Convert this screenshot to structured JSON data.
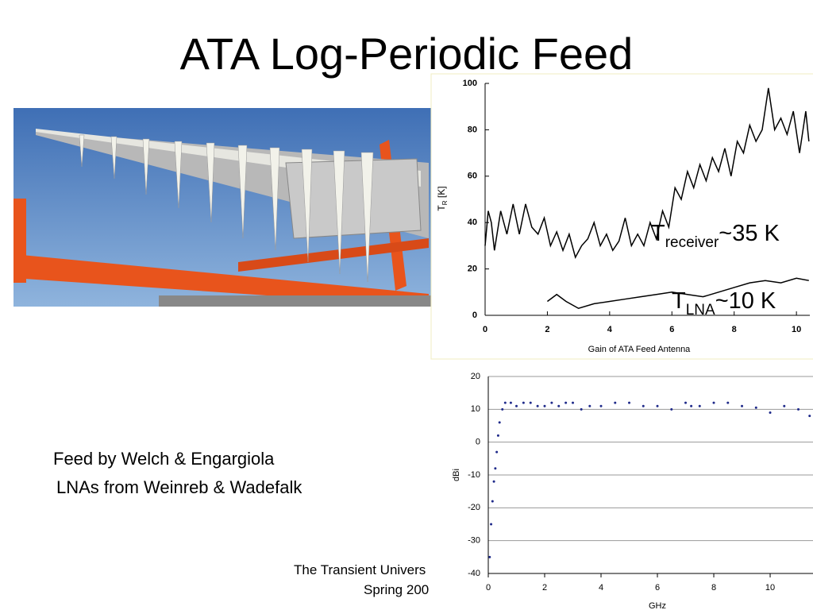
{
  "title": "ATA Log-Periodic Feed",
  "captions": [
    "Feed by Welch & Engargiola",
    "LNAs from Weinreb & Wadefalk"
  ],
  "footer": [
    "The Transient Univers",
    "Spring 200"
  ],
  "chart_data": [
    {
      "type": "line",
      "xlabel": "Gain of ATA Feed Antenna",
      "ylabel": {
        "main": "T",
        "sub": "R",
        "rest": " [K]"
      },
      "xlim": [
        0,
        10.43
      ],
      "ylim": [
        0,
        100
      ],
      "xticks": [
        0,
        2,
        4,
        6,
        8,
        10
      ],
      "yticks": [
        0,
        20,
        40,
        60,
        80,
        100
      ],
      "series": [
        {
          "color": "#000000",
          "x": [
            0,
            0.1,
            0.2,
            0.3,
            0.5,
            0.7,
            0.9,
            1.1,
            1.3,
            1.5,
            1.7,
            1.9,
            2.1,
            2.3,
            2.5,
            2.7,
            2.9,
            3.1,
            3.3,
            3.5,
            3.7,
            3.9,
            4.1,
            4.3,
            4.5,
            4.7,
            4.9,
            5.1,
            5.3,
            5.5,
            5.7,
            5.9,
            6.1,
            6.3,
            6.5,
            6.7,
            6.9,
            7.1,
            7.3,
            7.5,
            7.7,
            7.9,
            8.1,
            8.3,
            8.5,
            8.7,
            8.9,
            9.1,
            9.3,
            9.5,
            9.7,
            9.9,
            10.1,
            10.3,
            10.4
          ],
          "values": [
            30,
            45,
            40,
            28,
            45,
            35,
            48,
            35,
            48,
            38,
            35,
            42,
            30,
            36,
            28,
            35,
            25,
            30,
            33,
            40,
            30,
            35,
            28,
            32,
            42,
            30,
            35,
            30,
            40,
            33,
            45,
            38,
            55,
            50,
            62,
            55,
            65,
            58,
            68,
            62,
            72,
            60,
            75,
            70,
            82,
            75,
            80,
            98,
            80,
            85,
            78,
            88,
            70,
            88,
            75
          ]
        },
        {
          "color": "#000000",
          "x": [
            2,
            2.3,
            2.6,
            3,
            3.5,
            4,
            4.5,
            5,
            5.5,
            6,
            6.5,
            7,
            7.5,
            8,
            8.5,
            9,
            9.5,
            10,
            10.4
          ],
          "values": [
            6,
            9,
            6,
            3,
            5,
            6,
            7,
            8,
            9,
            10,
            9,
            8,
            10,
            12,
            14,
            15,
            14,
            16,
            15
          ]
        }
      ],
      "annotations": [
        {
          "main": "T",
          "sub": "receiver",
          "rest": "~35 K"
        },
        {
          "main": "T",
          "sub": "LNA",
          "rest": "~10 K"
        }
      ]
    },
    {
      "type": "scatter",
      "xlabel": "GHz",
      "ylabel": "dBi",
      "xlim": [
        0,
        11.52
      ],
      "ylim": [
        -40,
        20
      ],
      "xticks": [
        0,
        2,
        4,
        6,
        8,
        10
      ],
      "yticks": [
        -40,
        -30,
        -20,
        -10,
        0,
        10,
        20
      ],
      "grid": true,
      "series": [
        {
          "color": "#1f2a8a",
          "x": [
            0.05,
            0.1,
            0.15,
            0.2,
            0.25,
            0.3,
            0.35,
            0.4,
            0.5,
            0.6,
            0.8,
            1,
            1.25,
            1.5,
            1.75,
            2,
            2.25,
            2.5,
            2.75,
            3,
            3.3,
            3.6,
            4,
            4.5,
            5,
            5.5,
            6,
            6.5,
            7,
            7.2,
            7.5,
            8,
            8.5,
            9,
            9.5,
            10,
            10.5,
            11,
            11.4
          ],
          "values": [
            -35,
            -25,
            -18,
            -12,
            -8,
            -3,
            2,
            6,
            10,
            12,
            12,
            11,
            12,
            12,
            11,
            11,
            12,
            11,
            12,
            12,
            10,
            11,
            11,
            12,
            12,
            11,
            11,
            10,
            12,
            11,
            11,
            12,
            12,
            11,
            10.5,
            9,
            11,
            10,
            8
          ]
        }
      ]
    }
  ]
}
